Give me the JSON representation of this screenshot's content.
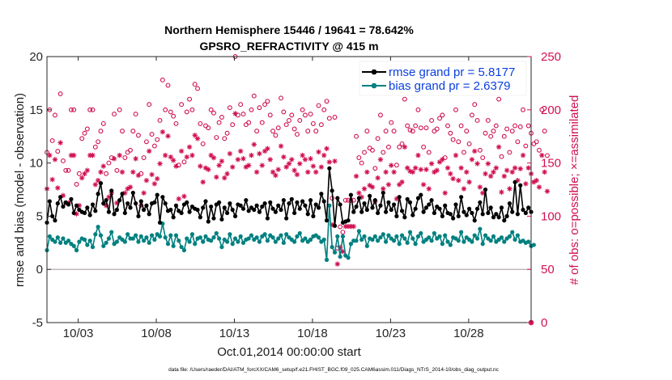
{
  "chart_data": {
    "type": "line",
    "title_line1": "Northern Hemisphere 15446 / 19641 = 78.642%",
    "title_line2": "GPSRO_REFRACTIVITY @ 415 m",
    "xlabel": "Oct.01,2014 00:00:00 start",
    "ylabel_left": "rmse and bias (model - observation)",
    "ylabel_right": "# of obs: o=possible; ×=assimilated",
    "footer": "data file: /Users/raeder/DAI/ATM_forcXX/CAM6_setup/f.e21.FHIST_BGC.f09_025.CAM6assim.011/Diags_NTrS_2014-10/obs_diag_output.nc",
    "x_ticks": [
      {
        "day": 3,
        "label": "10/03"
      },
      {
        "day": 8,
        "label": "10/08"
      },
      {
        "day": 13,
        "label": "10/13"
      },
      {
        "day": 18,
        "label": "10/18"
      },
      {
        "day": 23,
        "label": "10/23"
      },
      {
        "day": 28,
        "label": "10/28"
      }
    ],
    "xlim": [
      1,
      32
    ],
    "ylim_left": [
      -5,
      20
    ],
    "ylim_right": [
      0,
      250
    ],
    "yticks_left": [
      "-5",
      "0",
      "5",
      "10",
      "15",
      "20"
    ],
    "yticks_right": [
      "0",
      "50",
      "100",
      "150",
      "200",
      "250"
    ],
    "legend": [
      {
        "label": "rmse grand pr = 5.8177",
        "color": "#000000"
      },
      {
        "label": "bias grand pr = 2.6379",
        "color": "#008080"
      }
    ],
    "colors": {
      "rmse": "#000000",
      "bias": "#008080",
      "obs": "#d01050",
      "zero_line": "#b0a0a0"
    },
    "rmse": [
      4.4,
      6.4,
      5.0,
      4.6,
      6.2,
      6.8,
      5.9,
      6.3,
      6.1,
      6.6,
      5.3,
      6.0,
      5.6,
      5.4,
      5.3,
      5.8,
      5.1,
      6.1,
      5.5,
      7.1,
      8.1,
      6.2,
      6.5,
      5.4,
      7.4,
      5.2,
      5.6,
      6.5,
      7.1,
      5.3,
      6.2,
      5.8,
      7.2,
      6.2,
      5.0,
      6.4,
      5.6,
      6.0,
      5.2,
      6.2,
      6.3,
      7.0,
      4.4,
      6.8,
      6.2,
      5.5,
      5.6,
      4.9,
      6.0,
      5.5,
      5.3,
      6.1,
      6.3,
      5.4,
      5.9,
      5.7,
      5.6,
      4.9,
      5.8,
      6.4,
      4.5,
      5.9,
      4.8,
      6.1,
      6.3,
      4.7,
      5.8,
      5.3,
      6.2,
      5.6,
      5.0,
      6.1,
      6.0,
      5.7,
      6.5,
      5.5,
      5.8,
      5.6,
      6.0,
      5.4,
      5.9,
      6.2,
      4.8,
      6.3,
      5.7,
      5.4,
      6.0,
      5.6,
      6.5,
      4.8,
      6.2,
      6.6,
      5.3,
      6.3,
      5.7,
      6.4,
      6.0,
      5.2,
      6.5,
      5.0,
      6.1,
      5.8,
      7.1,
      6.4,
      4.6,
      9.5,
      7.4,
      4.1,
      6.7,
      6.1,
      4.4,
      4.5,
      4.6,
      7.0,
      5.4,
      5.9,
      6.7,
      5.4,
      6.2,
      5.6,
      6.9,
      5.8,
      6.5,
      5.3,
      6.0,
      7.2,
      5.4,
      6.3,
      5.6,
      6.1,
      5.0,
      6.8,
      5.5,
      4.9,
      6.6,
      6.3,
      5.1,
      5.7,
      6.7,
      7.0,
      5.4,
      5.8,
      6.1,
      6.5,
      5.3,
      5.9,
      5.7,
      5.0,
      6.0,
      5.3,
      5.2,
      4.8,
      6.1,
      5.0,
      6.8,
      5.4,
      5.1,
      5.7,
      5.3,
      4.6,
      5.7,
      6.3,
      5.2,
      7.5,
      5.3,
      5.8,
      4.9,
      5.2,
      4.9,
      5.8,
      4.6,
      5.0,
      6.2,
      5.4,
      8.2,
      5.2,
      7.9,
      5.6,
      5.3,
      5.8,
      5.4
    ],
    "bias": [
      1.8,
      3.1,
      2.8,
      2.6,
      3.0,
      2.5,
      2.9,
      2.5,
      2.7,
      2.4,
      2.2,
      1.8,
      2.6,
      2.9,
      2.8,
      2.3,
      2.7,
      2.1,
      3.3,
      4.0,
      3.2,
      2.2,
      2.5,
      2.9,
      3.5,
      2.4,
      2.6,
      3.0,
      2.8,
      2.6,
      3.3,
      2.9,
      2.9,
      3.2,
      2.6,
      3.1,
      2.7,
      3.0,
      2.5,
      3.2,
      2.8,
      3.3,
      3.1,
      4.3,
      3.0,
      2.4,
      3.2,
      2.2,
      3.2,
      2.7,
      2.1,
      1.8,
      2.9,
      2.6,
      3.3,
      2.4,
      2.9,
      3.0,
      2.6,
      3.1,
      2.8,
      2.7,
      3.0,
      3.4,
      2.9,
      2.1,
      2.8,
      2.6,
      3.3,
      2.4,
      2.9,
      2.6,
      3.1,
      2.5,
      2.8,
      2.9,
      3.2,
      2.8,
      3.0,
      2.6,
      3.1,
      3.3,
      2.7,
      3.2,
      3.0,
      2.6,
      2.9,
      3.2,
      2.5,
      3.3,
      3.0,
      2.8,
      2.6,
      3.1,
      3.4,
      2.7,
      2.9,
      2.6,
      2.8,
      3.1,
      3.2,
      3.0,
      2.6,
      2.8,
      0.9,
      6.0,
      2.1,
      1.6,
      3.1,
      1.2,
      3.1,
      1.3,
      1.1,
      2.4,
      2.7,
      2.7,
      3.6,
      2.8,
      3.1,
      2.2,
      2.9,
      2.8,
      3.1,
      2.7,
      3.0,
      3.3,
      2.6,
      3.2,
      2.9,
      2.7,
      3.1,
      2.4,
      3.2,
      2.9,
      2.5,
      3.5,
      2.9,
      2.4,
      3.1,
      3.4,
      2.6,
      2.8,
      3.0,
      2.7,
      3.4,
      2.9,
      3.1,
      2.4,
      3.2,
      2.6,
      2.3,
      3.0,
      2.9,
      2.7,
      3.5,
      2.6,
      3.0,
      2.8,
      2.6,
      3.2,
      2.9,
      3.8,
      2.4,
      3.2,
      2.9,
      2.7,
      3.1,
      2.6,
      2.8,
      3.0,
      2.6,
      2.9,
      3.1,
      3.5,
      2.8,
      3.2,
      2.6,
      2.7,
      2.5,
      2.6,
      2.2,
      2.3
    ],
    "obs_possible": [
      160,
      200,
      171,
      195,
      161,
      215,
      152,
      143,
      143,
      200,
      200,
      130,
      140,
      173,
      178,
      182,
      200,
      200,
      165,
      170,
      180,
      187,
      140,
      150,
      155,
      196,
      143,
      200,
      180,
      155,
      160,
      162,
      180,
      196,
      176,
      140,
      155,
      170,
      205,
      177,
      166,
      172,
      190,
      228,
      200,
      223,
      198,
      194,
      187,
      148,
      205,
      151,
      198,
      210,
      200,
      224,
      220,
      187,
      168,
      185,
      183,
      200,
      197,
      174,
      188,
      193,
      173,
      178,
      202,
      186,
      250,
      195,
      205,
      196,
      186,
      188,
      200,
      213,
      180,
      202,
      188,
      205,
      208,
      195,
      180,
      176,
      183,
      211,
      198,
      186,
      190,
      195,
      182,
      177,
      190,
      200,
      195,
      180,
      196,
      187,
      180,
      204,
      186,
      200,
      208,
      192,
      117,
      193,
      70,
      90,
      85,
      115,
      115,
      115,
      115,
      175,
      155,
      150,
      160,
      180,
      164,
      162,
      145,
      173,
      195,
      160,
      180,
      165,
      188,
      180,
      148,
      165,
      168,
      210,
      185,
      181,
      180,
      185,
      200,
      183,
      165,
      183,
      160,
      190,
      180,
      182,
      192,
      195,
      155,
      185,
      178,
      172,
      200,
      170,
      185,
      160,
      180,
      168,
      195,
      205,
      190,
      162,
      155,
      178,
      190,
      175,
      180,
      185,
      210,
      156,
      175,
      182,
      160,
      180,
      185,
      170,
      184,
      200,
      166,
      185,
      178,
      168,
      170,
      162,
      200,
      180,
      157
    ]
  }
}
